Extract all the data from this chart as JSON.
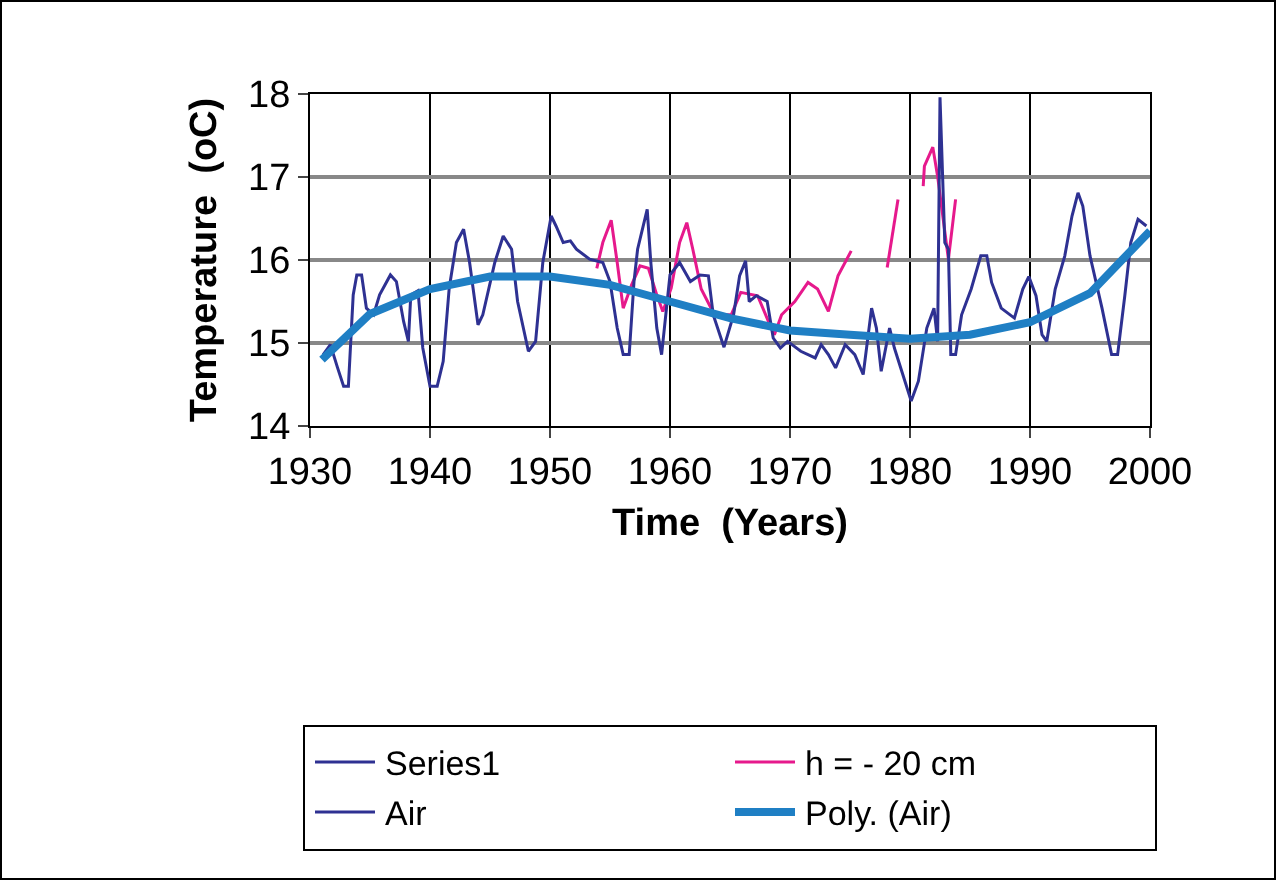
{
  "chart_data": {
    "type": "line",
    "xlabel": "Time  (Years)",
    "ylabel": "Temperature  (oC)",
    "xlim": [
      1930,
      2000
    ],
    "xticks": [
      1930,
      1940,
      1950,
      1960,
      1970,
      1980,
      1990,
      2000
    ],
    "ylim": [
      14,
      18
    ],
    "yticks": [
      14,
      15,
      16,
      17,
      18
    ],
    "grid": true,
    "legend": "bottom",
    "marker": "none",
    "line_style": "solid",
    "series": [
      {
        "name": "Series1",
        "color": "#2e3192"
      },
      {
        "name": "h = - 20 cm",
        "color": "#e6198c",
        "x": [
          1953.9,
          1954.4,
          1955.1,
          1955.6,
          1956.1,
          1956.8,
          1957.5,
          1958.2,
          1958.9,
          1959.4,
          1960.1,
          1960.8,
          1961.4,
          1961.9,
          1962.6,
          1963.7,
          1965.1,
          1965.9,
          1967.3,
          1968.2,
          1968.7,
          1969.3,
          1970.4,
          1971.5,
          1972.3,
          1973.2,
          1974,
          1975.1,
          1976.5,
          1978.1,
          1979,
          1980,
          1981.1,
          1981.2,
          1981.9,
          1982.3,
          1983.2,
          1983.8
        ],
        "values": [
          15.9,
          16.21,
          16.48,
          15.97,
          15.42,
          15.7,
          15.93,
          15.9,
          15.58,
          15.38,
          15.66,
          16.21,
          16.45,
          16.13,
          15.65,
          15.34,
          15.34,
          15.61,
          15.57,
          15.26,
          15.1,
          15.34,
          15.5,
          15.73,
          15.65,
          15.38,
          15.81,
          16.11,
          null,
          15.91,
          16.73,
          null,
          16.89,
          17.13,
          17.36,
          17.01,
          16.01,
          16.73
        ]
      },
      {
        "name": "Air",
        "color": "#2e3192",
        "x": [
          1931.1,
          1931.7,
          1932.3,
          1932.8,
          1933.2,
          1933.6,
          1933.9,
          1934.3,
          1934.7,
          1935.3,
          1935.8,
          1936.7,
          1937.2,
          1937.8,
          1938.2,
          1938.4,
          1939,
          1939.4,
          1940,
          1940.6,
          1941.1,
          1941.6,
          1942.2,
          1942.8,
          1943.3,
          1944,
          1944.4,
          1945.4,
          1946.1,
          1946.8,
          1947.3,
          1948.2,
          1948.8,
          1949.4,
          1950.1,
          1950.5,
          1951.1,
          1951.7,
          1952.2,
          1953.3,
          1954.4,
          1955,
          1955.6,
          1956.1,
          1956.6,
          1957,
          1957.3,
          1958.1,
          1958.4,
          1958.9,
          1959.3,
          1960,
          1960.8,
          1961.7,
          1962.5,
          1963.2,
          1963.6,
          1964.5,
          1965.3,
          1965.8,
          1966.3,
          1966.6,
          1967.2,
          1968.1,
          1968.6,
          1969.2,
          1969.8,
          1970.9,
          1972.1,
          1972.6,
          1973.2,
          1973.8,
          1974.6,
          1975.4,
          1976.1,
          1976.8,
          1977.2,
          1977.6,
          1978.3,
          1978.7,
          1979.4,
          1980.1,
          1980.7,
          1981.4,
          1982,
          1982.3,
          1982.5,
          1982.9,
          1983.2,
          1983.4,
          1983.8,
          1984.3,
          1985.1,
          1985.9,
          1986.4,
          1986.8,
          1987.6,
          1988.7,
          1989.4,
          1989.9,
          1990.5,
          1991,
          1991.4,
          1992.1,
          1992.9,
          1993.5,
          1994,
          1994.4,
          1995,
          1996,
          1996.8,
          1997.3,
          1997.9,
          1998.4,
          1999,
          1999.7
        ],
        "values": [
          14.86,
          14.98,
          14.7,
          14.48,
          14.48,
          15.58,
          15.82,
          15.82,
          15.42,
          15.34,
          15.58,
          15.82,
          15.74,
          15.26,
          15.02,
          15.58,
          15.63,
          14.94,
          14.48,
          14.48,
          14.78,
          15.66,
          16.21,
          16.37,
          15.97,
          15.22,
          15.34,
          15.97,
          16.29,
          16.13,
          15.5,
          14.9,
          15.02,
          15.97,
          16.53,
          16.41,
          16.21,
          16.23,
          16.13,
          16.01,
          15.97,
          15.74,
          15.18,
          14.86,
          14.86,
          15.74,
          16.13,
          16.61,
          15.97,
          15.18,
          14.86,
          15.82,
          15.97,
          15.74,
          15.82,
          15.81,
          15.34,
          14.95,
          15.34,
          15.81,
          15.99,
          15.5,
          15.57,
          15.5,
          15.06,
          14.94,
          15.02,
          14.9,
          14.82,
          14.98,
          14.86,
          14.7,
          14.98,
          14.86,
          14.62,
          15.42,
          15.18,
          14.66,
          15.18,
          14.94,
          14.62,
          14.3,
          14.54,
          15.18,
          15.42,
          15.02,
          17.96,
          16.21,
          16.13,
          14.86,
          14.86,
          15.34,
          15.65,
          16.05,
          16.05,
          15.73,
          15.42,
          15.3,
          15.65,
          15.8,
          15.57,
          15.1,
          15.02,
          15.65,
          16.05,
          16.53,
          16.81,
          16.65,
          16.05,
          15.42,
          14.86,
          14.86,
          15.57,
          16.21,
          16.49,
          16.41
        ]
      },
      {
        "name": "Poly. (Air)",
        "color": "#1f7fc4",
        "x": [
          1931,
          1935,
          1940,
          1945,
          1950,
          1955,
          1960,
          1965,
          1970,
          1975,
          1980,
          1985,
          1990,
          1995,
          2000
        ],
        "values": [
          14.8,
          15.35,
          15.65,
          15.8,
          15.8,
          15.7,
          15.5,
          15.3,
          15.15,
          15.1,
          15.05,
          15.1,
          15.25,
          15.6,
          16.35
        ]
      }
    ]
  }
}
